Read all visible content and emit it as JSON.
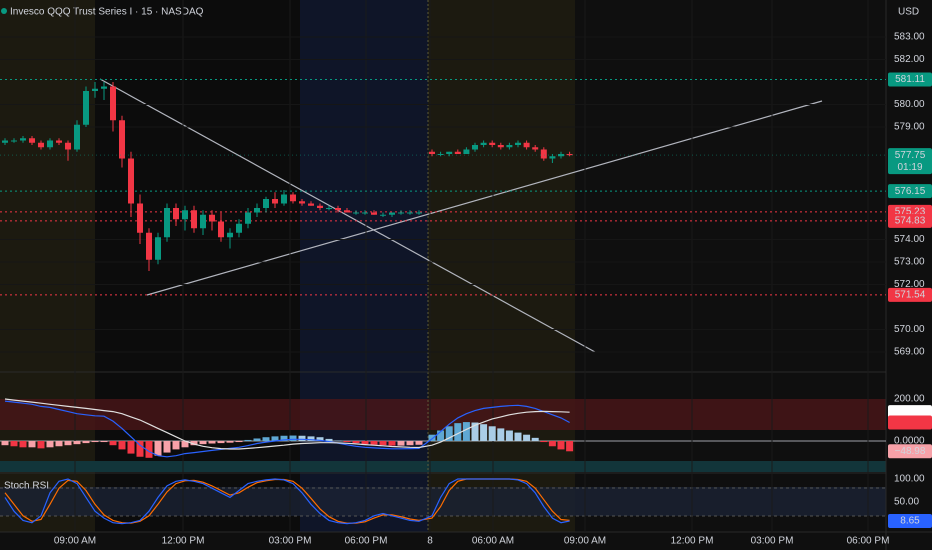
{
  "header": {
    "title": "Invesco QQQ Trust Series I · 15 · NASDAQ",
    "currency": "USD"
  },
  "price_axis": {
    "ticks": [
      {
        "value": 583,
        "label": "583.00"
      },
      {
        "value": 582,
        "label": "582.00"
      },
      {
        "value": 580,
        "label": "580.00"
      },
      {
        "value": 579,
        "label": "579.00"
      },
      {
        "value": 574,
        "label": "574.00"
      },
      {
        "value": 573,
        "label": "573.00"
      },
      {
        "value": 572,
        "label": "572.00"
      },
      {
        "value": 570,
        "label": "570.00"
      },
      {
        "value": 569,
        "label": "569.00"
      }
    ]
  },
  "price_lines": [
    {
      "value": 581.11,
      "color": "#089981"
    },
    {
      "value": 576.15,
      "color": "#089981"
    },
    {
      "value": 575.23,
      "color": "#f23645"
    },
    {
      "value": 574.83,
      "color": "#f23645"
    },
    {
      "value": 571.54,
      "color": "#f23645"
    }
  ],
  "last_price": {
    "value": 577.75,
    "countdown": "01:19",
    "color": "#089981"
  },
  "time_axis": [
    "09:00 AM",
    "12:00 PM",
    "03:00 PM",
    "06:00 PM",
    "8",
    "06:00 AM",
    "09:00 AM",
    "12:00 PM",
    "03:00 PM",
    "06:00 PM"
  ],
  "candles": [
    [
      578.3,
      578.5,
      578.2,
      578.4
    ],
    [
      578.4,
      578.5,
      578.3,
      578.4
    ],
    [
      578.4,
      578.6,
      578.3,
      578.5
    ],
    [
      578.5,
      578.6,
      578.2,
      578.3
    ],
    [
      578.3,
      578.4,
      578.0,
      578.1
    ],
    [
      578.1,
      578.5,
      578.0,
      578.4
    ],
    [
      578.4,
      578.5,
      578.2,
      578.3
    ],
    [
      578.3,
      578.4,
      577.5,
      578.0
    ],
    [
      578.0,
      579.3,
      577.9,
      579.1
    ],
    [
      579.1,
      580.8,
      579.0,
      580.6
    ],
    [
      580.6,
      581.0,
      580.3,
      580.7
    ],
    [
      580.7,
      581.0,
      580.2,
      580.8
    ],
    [
      580.8,
      581.0,
      578.8,
      579.3
    ],
    [
      579.3,
      579.5,
      577.2,
      577.6
    ],
    [
      577.6,
      577.9,
      575.0,
      575.6
    ],
    [
      575.6,
      576.0,
      573.8,
      574.3
    ],
    [
      574.3,
      574.5,
      572.6,
      573.1
    ],
    [
      573.1,
      574.3,
      572.9,
      574.1
    ],
    [
      574.1,
      575.6,
      573.9,
      575.4
    ],
    [
      575.4,
      575.6,
      574.6,
      574.9
    ],
    [
      574.9,
      575.5,
      574.4,
      575.3
    ],
    [
      575.3,
      575.5,
      574.3,
      574.5
    ],
    [
      574.5,
      575.3,
      574.2,
      575.1
    ],
    [
      575.1,
      575.3,
      574.4,
      574.8
    ],
    [
      574.8,
      575.2,
      573.9,
      574.1
    ],
    [
      574.1,
      574.5,
      573.6,
      574.3
    ],
    [
      574.3,
      574.9,
      574.1,
      574.7
    ],
    [
      574.7,
      575.4,
      574.5,
      575.2
    ],
    [
      575.2,
      575.6,
      575.0,
      575.4
    ],
    [
      575.4,
      575.9,
      575.2,
      575.8
    ],
    [
      575.8,
      576.1,
      575.4,
      575.6
    ],
    [
      575.6,
      576.2,
      575.5,
      576.0
    ],
    [
      576.0,
      576.1,
      575.6,
      575.7
    ],
    [
      575.7,
      575.8,
      575.5,
      575.6
    ],
    [
      575.6,
      575.7,
      575.5,
      575.5
    ],
    [
      575.5,
      575.6,
      575.3,
      575.4
    ],
    [
      575.4,
      575.5,
      575.3,
      575.4
    ],
    [
      575.4,
      575.5,
      575.2,
      575.3
    ],
    [
      575.3,
      575.4,
      575.2,
      575.2
    ],
    [
      575.2,
      575.3,
      575.1,
      575.2
    ],
    [
      575.2,
      575.3,
      575.1,
      575.2
    ],
    [
      575.2,
      575.3,
      575.1,
      575.1
    ],
    [
      575.1,
      575.2,
      575.0,
      575.1
    ],
    [
      575.1,
      575.2,
      575.0,
      575.2
    ],
    [
      575.2,
      575.3,
      575.1,
      575.2
    ],
    [
      575.2,
      575.3,
      575.1,
      575.2
    ],
    [
      575.2,
      575.3,
      575.1,
      575.2
    ],
    [
      577.9,
      578.0,
      577.7,
      577.8
    ],
    [
      577.8,
      577.9,
      577.7,
      577.8
    ],
    [
      577.8,
      577.9,
      577.7,
      577.9
    ],
    [
      577.9,
      578.0,
      577.8,
      577.8
    ],
    [
      577.8,
      578.1,
      577.8,
      578.0
    ],
    [
      578.0,
      578.3,
      577.9,
      578.2
    ],
    [
      578.2,
      578.4,
      578.1,
      578.3
    ],
    [
      578.3,
      578.4,
      578.1,
      578.2
    ],
    [
      578.2,
      578.3,
      578.0,
      578.1
    ],
    [
      578.1,
      578.3,
      578.0,
      578.2
    ],
    [
      578.2,
      578.4,
      578.1,
      578.3
    ],
    [
      578.3,
      578.4,
      578.0,
      578.1
    ],
    [
      578.1,
      578.2,
      577.9,
      578.0
    ],
    [
      578.0,
      578.1,
      577.5,
      577.6
    ],
    [
      577.6,
      577.8,
      577.4,
      577.7
    ],
    [
      577.7,
      577.9,
      577.6,
      577.8
    ],
    [
      577.8,
      577.9,
      577.7,
      577.75
    ]
  ],
  "macd": {
    "ticks": [
      {
        "value": 200,
        "label": "200.00"
      },
      {
        "value": 0,
        "label": "0.0000"
      }
    ],
    "histogram": [
      -20,
      -25,
      -30,
      -30,
      -35,
      -30,
      -25,
      -20,
      -15,
      -10,
      -5,
      -5,
      -20,
      -40,
      -60,
      -75,
      -80,
      -70,
      -55,
      -40,
      -30,
      -20,
      -15,
      -12,
      -10,
      -8,
      -5,
      5,
      12,
      18,
      22,
      25,
      26,
      25,
      22,
      18,
      10,
      2,
      -5,
      -10,
      -15,
      -18,
      -20,
      -22,
      -22,
      -20,
      -18,
      30,
      50,
      70,
      85,
      90,
      88,
      80,
      70,
      60,
      50,
      40,
      30,
      15,
      -5,
      -25,
      -40,
      -48.98
    ],
    "macd": [
      190,
      185,
      180,
      175,
      165,
      160,
      150,
      140,
      130,
      125,
      120,
      118,
      95,
      60,
      20,
      -20,
      -50,
      -70,
      -75,
      -70,
      -60,
      -55,
      -50,
      -45,
      -40,
      -35,
      -30,
      -22,
      -12,
      -5,
      0,
      5,
      8,
      8,
      6,
      3,
      -3,
      -10,
      -18,
      -25,
      -30,
      -33,
      -35,
      -37,
      -37,
      -36,
      -35,
      10,
      45,
      80,
      110,
      130,
      145,
      155,
      160,
      165,
      168,
      170,
      165,
      155,
      140,
      125,
      110,
      88.27
    ],
    "signal": [
      200,
      195,
      190,
      185,
      180,
      175,
      170,
      165,
      160,
      155,
      150,
      145,
      140,
      130,
      115,
      100,
      80,
      60,
      40,
      20,
      0,
      -15,
      -25,
      -32,
      -36,
      -38,
      -38,
      -35,
      -32,
      -28,
      -24,
      -20,
      -15,
      -12,
      -10,
      -8,
      -8,
      -9,
      -11,
      -14,
      -17,
      -20,
      -23,
      -26,
      -28,
      -30,
      -31,
      -20,
      -5,
      15,
      35,
      55,
      75,
      90,
      105,
      115,
      125,
      132,
      137,
      140,
      141,
      140,
      139,
      137.25
    ],
    "tags": [
      {
        "value": 137.25,
        "color": "#ffffff"
      },
      {
        "value": 88.27,
        "color": "#f23645"
      },
      {
        "value": -48.98,
        "label": "−48.98",
        "color": "#f7a1a8"
      }
    ]
  },
  "stoch_rsi": {
    "title": "Stoch RSI",
    "ticks": [
      {
        "value": 100,
        "label": "100.00"
      },
      {
        "value": 50,
        "label": "50.00"
      }
    ],
    "k": [
      60,
      30,
      10,
      5,
      20,
      70,
      95,
      100,
      90,
      60,
      30,
      15,
      5,
      3,
      5,
      10,
      30,
      60,
      85,
      95,
      98,
      95,
      90,
      80,
      70,
      60,
      75,
      90,
      95,
      98,
      100,
      98,
      90,
      70,
      45,
      25,
      10,
      5,
      3,
      5,
      10,
      20,
      25,
      20,
      15,
      10,
      8,
      20,
      60,
      90,
      100,
      100,
      100,
      100,
      100,
      100,
      100,
      98,
      90,
      70,
      40,
      15,
      5,
      8.65
    ],
    "d": [
      70,
      45,
      20,
      8,
      12,
      45,
      80,
      97,
      95,
      75,
      45,
      22,
      10,
      5,
      4,
      8,
      20,
      45,
      72,
      90,
      96,
      97,
      93,
      85,
      75,
      65,
      70,
      82,
      92,
      96,
      99,
      99,
      95,
      80,
      58,
      35,
      18,
      8,
      4,
      4,
      7,
      15,
      22,
      22,
      18,
      13,
      10,
      15,
      40,
      75,
      95,
      100,
      100,
      100,
      100,
      100,
      100,
      99,
      95,
      80,
      55,
      30,
      12,
      10
    ],
    "k_color": "#2962ff",
    "d_color": "#ff6d00",
    "tag": {
      "value": 8.65,
      "color": "#2962ff"
    }
  }
}
